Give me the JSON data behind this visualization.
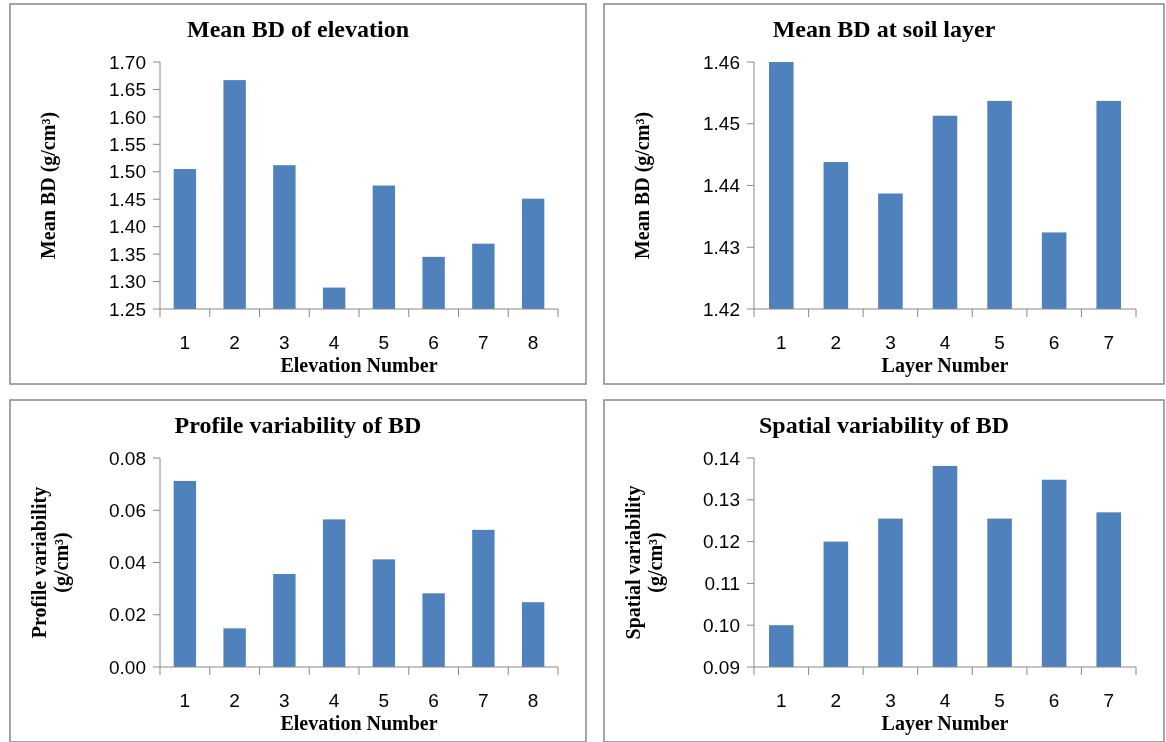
{
  "chart_data": [
    {
      "type": "bar",
      "title": "Mean  BD of elevation",
      "xlabel": "Elevation Number",
      "ylabel": "Mean BD (g/cm³)",
      "categories": [
        "1",
        "2",
        "3",
        "4",
        "5",
        "6",
        "7",
        "8"
      ],
      "values": [
        1.505,
        1.667,
        1.512,
        1.289,
        1.475,
        1.345,
        1.369,
        1.451
      ],
      "color": "#4f81bd",
      "ylim": [
        1.25,
        1.7
      ],
      "yticks": [
        {
          "value": 1.25,
          "label": "1.25"
        },
        {
          "value": 1.3,
          "label": "1.30"
        },
        {
          "value": 1.35,
          "label": "1.35"
        },
        {
          "value": 1.4,
          "label": "1.40"
        },
        {
          "value": 1.45,
          "label": "1.45"
        },
        {
          "value": 1.5,
          "label": "1.50"
        },
        {
          "value": 1.55,
          "label": "1.55"
        },
        {
          "value": 1.6,
          "label": "1.60"
        },
        {
          "value": 1.65,
          "label": "1.65"
        },
        {
          "value": 1.7,
          "label": "1.70"
        }
      ],
      "grid": false
    },
    {
      "type": "bar",
      "title": "Mean BD at soil layer",
      "xlabel": "Layer Number",
      "ylabel": "Mean BD (g/cm³)",
      "categories": [
        "1",
        "2",
        "3",
        "4",
        "5",
        "6",
        "7"
      ],
      "values": [
        1.46,
        1.4438,
        1.4387,
        1.4513,
        1.4537,
        1.4324,
        1.4537
      ],
      "color": "#4f81bd",
      "ylim": [
        1.42,
        1.46
      ],
      "yticks": [
        1.42,
        1.43,
        1.44,
        1.45,
        1.46
      ],
      "grid": false
    },
    {
      "type": "bar",
      "title": "Profile variability of BD",
      "xlabel": "Elevation Number",
      "ylabel": "Profile variability (g/cm³)",
      "categories": [
        "1",
        "2",
        "3",
        "4",
        "5",
        "6",
        "7",
        "8"
      ],
      "values": [
        0.0712,
        0.0148,
        0.0356,
        0.0565,
        0.0412,
        0.0282,
        0.0525,
        0.0248
      ],
      "color": "#4f81bd",
      "ylim": [
        0,
        0.08
      ],
      "yticks": [
        {
          "value": 0,
          "label": "0.00"
        },
        {
          "value": 0.02,
          "label": "0.02"
        },
        {
          "value": 0.04,
          "label": "0.04"
        },
        {
          "value": 0.06,
          "label": "0.06"
        },
        {
          "value": 0.08,
          "label": "0.08"
        }
      ],
      "grid": false
    },
    {
      "type": "bar",
      "title": "Spatial variability of BD",
      "xlabel": "Layer Number",
      "ylabel": "Spatial variability (g/cm³)",
      "categories": [
        "1",
        "2",
        "3",
        "4",
        "5",
        "6",
        "7"
      ],
      "values": [
        0.1,
        0.12,
        0.1255,
        0.1381,
        0.1255,
        0.1348,
        0.127
      ],
      "color": "#4f81bd",
      "ylim": [
        0.09,
        0.14
      ],
      "yticks": [
        0.09,
        {
          "value": 0.1,
          "label": "0.10"
        },
        0.11,
        0.12,
        0.13,
        0.14
      ],
      "grid": false
    }
  ]
}
